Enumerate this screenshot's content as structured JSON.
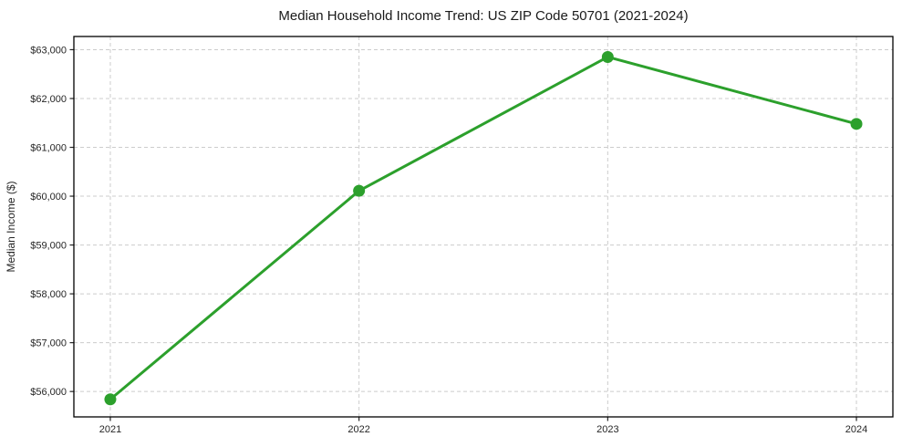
{
  "chart_data": {
    "type": "line",
    "title": "Median Household Income Trend: US ZIP Code 50701 (2021-2024)",
    "xlabel": "",
    "ylabel": "Median Income ($)",
    "categories": [
      "2021",
      "2022",
      "2023",
      "2024"
    ],
    "series": [
      {
        "name": "Median Household Income",
        "values": [
          55840,
          60110,
          62850,
          61480
        ]
      }
    ],
    "yticks": [
      56000,
      57000,
      58000,
      59000,
      60000,
      61000,
      62000,
      63000
    ],
    "ytick_labels": [
      "$56,000",
      "$57,000",
      "$58,000",
      "$59,000",
      "$60,000",
      "$61,000",
      "$62,000",
      "$63,000"
    ],
    "ylim": [
      55480,
      63270
    ],
    "grid": true,
    "grid_style": "dashed",
    "legend_position": "none",
    "colors": {
      "line": "#2ca02c",
      "marker": "#2ca02c",
      "grid": "#cccccc",
      "spine": "#000000",
      "tick": "#262626",
      "background": "#ffffff"
    }
  }
}
